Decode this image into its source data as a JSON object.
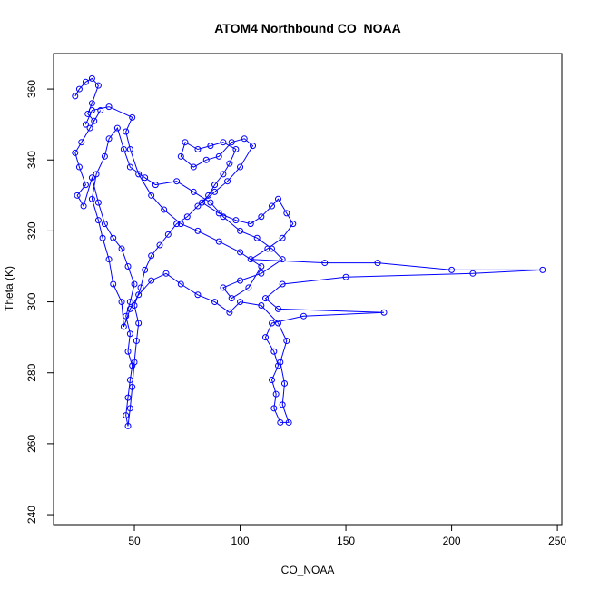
{
  "chart_data": {
    "type": "line",
    "title": "ATOM4 Northbound CO_NOAA",
    "x_label": "CO_NOAA",
    "y_label": "Theta (K)",
    "color": "#0000ff",
    "markers": true,
    "x": [
      22,
      24,
      27,
      30,
      33,
      30,
      28,
      31,
      34,
      29,
      25,
      22,
      24,
      27,
      23,
      26,
      30,
      33,
      36,
      40,
      44,
      47,
      50,
      48,
      46,
      48,
      47,
      49,
      48,
      47,
      46,
      47,
      48,
      49,
      50,
      51,
      52,
      50,
      53,
      55,
      58,
      62,
      66,
      70,
      75,
      80,
      85,
      88,
      92,
      95,
      98,
      92,
      86,
      80,
      74,
      72,
      78,
      84,
      90,
      96,
      102,
      106,
      100,
      94,
      88,
      82,
      90,
      98,
      105,
      110,
      115,
      118,
      122,
      125,
      120,
      113,
      105,
      140,
      165,
      200,
      243,
      210,
      150,
      120,
      112,
      118,
      168,
      130,
      115,
      112,
      116,
      118,
      115,
      117,
      116,
      119,
      123,
      120,
      121,
      119,
      122,
      118,
      110,
      100,
      95,
      88,
      80,
      72,
      65,
      58,
      52,
      48,
      45,
      44,
      40,
      38,
      35,
      33,
      30,
      32,
      36,
      38,
      42,
      45,
      48,
      55,
      60,
      70,
      78,
      86,
      92,
      100,
      108,
      115,
      120,
      110,
      100,
      92,
      96,
      104,
      110,
      100,
      90,
      80,
      72,
      64,
      58,
      52,
      48,
      46,
      49,
      38,
      30,
      27
    ],
    "values": [
      358,
      360,
      362,
      363,
      361,
      356,
      353,
      351,
      354,
      349,
      345,
      342,
      338,
      333,
      330,
      327,
      335,
      328,
      322,
      318,
      315,
      310,
      305,
      300,
      296,
      291,
      286,
      282,
      278,
      273,
      268,
      265,
      270,
      276,
      283,
      289,
      294,
      299,
      304,
      309,
      313,
      316,
      319,
      322,
      324,
      327,
      330,
      333,
      336,
      339,
      343,
      345,
      344,
      343,
      345,
      341,
      338,
      340,
      341,
      345,
      346,
      344,
      338,
      334,
      331,
      328,
      325,
      323,
      322,
      324,
      327,
      329,
      325,
      322,
      318,
      315,
      312,
      311,
      311,
      309,
      309,
      308,
      307,
      305,
      301,
      298,
      297,
      296,
      294,
      290,
      286,
      282,
      278,
      274,
      270,
      266,
      266,
      271,
      277,
      283,
      289,
      294,
      299,
      300,
      297,
      300,
      302,
      305,
      308,
      306,
      302,
      298,
      293,
      300,
      305,
      312,
      318,
      323,
      329,
      336,
      341,
      346,
      349,
      343,
      338,
      335,
      333,
      334,
      331,
      328,
      324,
      320,
      318,
      315,
      312,
      308,
      306,
      304,
      301,
      304,
      310,
      314,
      317,
      320,
      322,
      326,
      330,
      336,
      343,
      348,
      352,
      355,
      354,
      350
    ],
    "xlim": [
      11.8,
      252.1
    ],
    "ylim": [
      237.2,
      370
    ],
    "xticks": [
      50,
      100,
      150,
      200,
      250
    ],
    "yticks": [
      240,
      260,
      280,
      300,
      320,
      340,
      360
    ]
  }
}
